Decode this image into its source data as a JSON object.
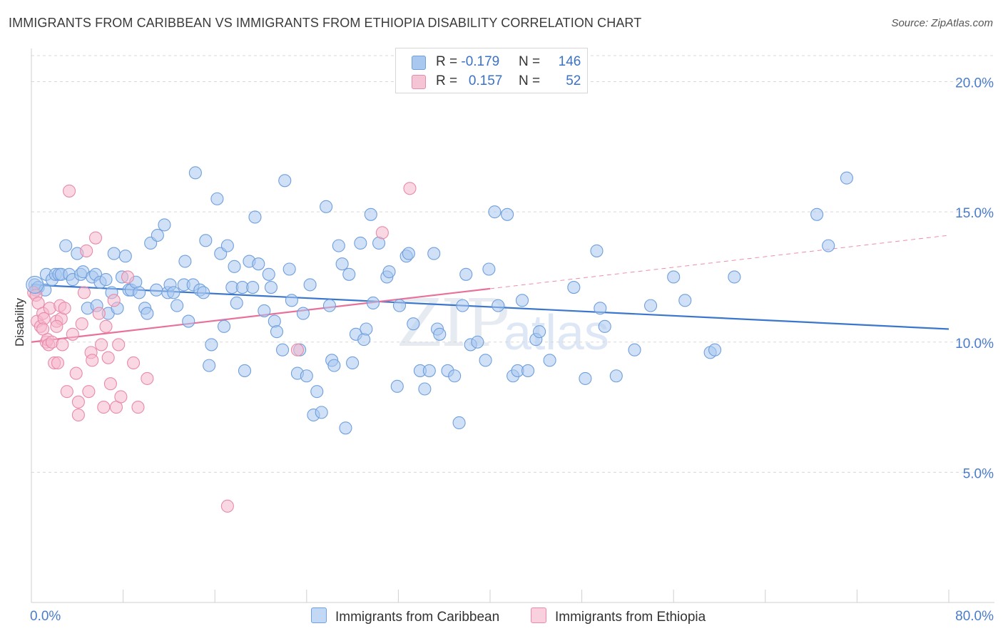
{
  "title": "IMMIGRANTS FROM CARIBBEAN VS IMMIGRANTS FROM ETHIOPIA DISABILITY CORRELATION CHART",
  "source": "Source: ZipAtlas.com",
  "watermark": {
    "part1": "ZIP",
    "part2": "atlas"
  },
  "legend_top": {
    "rows": [
      {
        "r_label": "R = ",
        "r_value": "-0.179",
        "n_label": "N = ",
        "n_value": "146"
      },
      {
        "r_label": "R = ",
        "r_value": "0.157",
        "n_label": "N = ",
        "n_value": "52"
      }
    ]
  },
  "colors": {
    "blue_fill": "#a9c8f0",
    "blue_stroke": "#6f9fdc",
    "blue_line": "#3a77cc",
    "pink_fill": "#f5b8cc",
    "pink_stroke": "#e88aa8",
    "pink_line": "#e8709a",
    "grid": "#d8d8d8",
    "tick_text": "#4a7ccc"
  },
  "chart_data": {
    "type": "scatter",
    "title": "IMMIGRANTS FROM CARIBBEAN VS IMMIGRANTS FROM ETHIOPIA DISABILITY CORRELATION CHART",
    "xlabel": "",
    "ylabel": "Disability",
    "xlim": [
      0,
      80
    ],
    "ylim": [
      0,
      21
    ],
    "x_tick_labels": [
      "0.0%",
      "80.0%"
    ],
    "y_ticks": [
      5,
      10,
      15,
      20
    ],
    "y_tick_labels": [
      "5.0%",
      "10.0%",
      "15.0%",
      "20.0%"
    ],
    "grid": true,
    "legend_position": "bottom",
    "series": [
      {
        "name": "Immigrants from Caribbean",
        "color": "#a9c8f0",
        "R": -0.179,
        "N": 146,
        "trend": {
          "x": [
            0,
            80
          ],
          "y": [
            12.2,
            10.5
          ],
          "dashed_from": null
        },
        "points": [
          [
            0.3,
            12.2
          ],
          [
            0.4,
            12.0
          ],
          [
            0.6,
            12.1
          ],
          [
            1.2,
            12.0
          ],
          [
            1.3,
            12.6
          ],
          [
            1.8,
            12.4
          ],
          [
            2.1,
            12.6
          ],
          [
            2.4,
            12.6
          ],
          [
            2.6,
            12.6
          ],
          [
            3.0,
            13.7
          ],
          [
            3.3,
            12.6
          ],
          [
            3.6,
            12.4
          ],
          [
            4.0,
            13.4
          ],
          [
            4.3,
            12.6
          ],
          [
            4.5,
            12.7
          ],
          [
            4.9,
            11.3
          ],
          [
            5.3,
            12.5
          ],
          [
            5.6,
            12.6
          ],
          [
            5.7,
            11.4
          ],
          [
            6.0,
            12.3
          ],
          [
            6.5,
            12.4
          ],
          [
            6.7,
            11.1
          ],
          [
            7.0,
            11.9
          ],
          [
            7.2,
            13.4
          ],
          [
            7.5,
            11.3
          ],
          [
            7.9,
            12.5
          ],
          [
            8.2,
            13.3
          ],
          [
            8.5,
            12.0
          ],
          [
            8.7,
            12.0
          ],
          [
            9.1,
            12.3
          ],
          [
            9.4,
            11.9
          ],
          [
            9.9,
            11.3
          ],
          [
            10.1,
            11.1
          ],
          [
            10.4,
            13.8
          ],
          [
            10.9,
            12.0
          ],
          [
            11.0,
            14.1
          ],
          [
            11.6,
            14.5
          ],
          [
            11.9,
            11.9
          ],
          [
            12.1,
            12.2
          ],
          [
            12.4,
            11.9
          ],
          [
            12.7,
            11.4
          ],
          [
            13.3,
            12.2
          ],
          [
            13.4,
            13.1
          ],
          [
            13.7,
            10.8
          ],
          [
            14.1,
            12.2
          ],
          [
            14.3,
            16.5
          ],
          [
            14.7,
            12.0
          ],
          [
            15.0,
            11.9
          ],
          [
            15.2,
            13.9
          ],
          [
            15.5,
            9.1
          ],
          [
            15.7,
            9.9
          ],
          [
            16.2,
            15.5
          ],
          [
            16.5,
            13.4
          ],
          [
            16.8,
            10.6
          ],
          [
            17.1,
            13.7
          ],
          [
            17.5,
            12.1
          ],
          [
            17.7,
            12.9
          ],
          [
            17.9,
            11.5
          ],
          [
            18.4,
            12.1
          ],
          [
            18.6,
            8.9
          ],
          [
            19.0,
            13.1
          ],
          [
            19.3,
            12.1
          ],
          [
            19.5,
            14.8
          ],
          [
            19.8,
            13.0
          ],
          [
            20.3,
            11.2
          ],
          [
            20.7,
            12.6
          ],
          [
            20.9,
            12.1
          ],
          [
            21.2,
            10.8
          ],
          [
            21.4,
            10.4
          ],
          [
            21.9,
            9.7
          ],
          [
            22.1,
            16.2
          ],
          [
            22.5,
            12.8
          ],
          [
            22.7,
            11.6
          ],
          [
            23.2,
            8.8
          ],
          [
            23.4,
            9.7
          ],
          [
            23.7,
            11.1
          ],
          [
            24.0,
            8.7
          ],
          [
            24.3,
            12.2
          ],
          [
            24.6,
            7.2
          ],
          [
            24.9,
            8.1
          ],
          [
            25.3,
            7.3
          ],
          [
            25.7,
            15.2
          ],
          [
            26.0,
            11.4
          ],
          [
            26.2,
            9.3
          ],
          [
            26.4,
            9.1
          ],
          [
            26.8,
            13.7
          ],
          [
            27.1,
            13.0
          ],
          [
            27.4,
            6.7
          ],
          [
            27.7,
            12.6
          ],
          [
            28.0,
            9.2
          ],
          [
            28.3,
            10.3
          ],
          [
            28.7,
            13.8
          ],
          [
            29.0,
            10.1
          ],
          [
            29.2,
            10.5
          ],
          [
            29.6,
            14.9
          ],
          [
            29.8,
            11.5
          ],
          [
            30.3,
            13.8
          ],
          [
            31.0,
            12.5
          ],
          [
            31.2,
            12.7
          ],
          [
            31.9,
            8.3
          ],
          [
            32.1,
            11.4
          ],
          [
            32.7,
            13.3
          ],
          [
            32.9,
            13.4
          ],
          [
            33.3,
            10.7
          ],
          [
            33.9,
            8.9
          ],
          [
            34.3,
            8.2
          ],
          [
            34.7,
            8.9
          ],
          [
            35.1,
            13.4
          ],
          [
            35.4,
            10.5
          ],
          [
            35.6,
            10.3
          ],
          [
            36.3,
            8.9
          ],
          [
            36.9,
            8.7
          ],
          [
            37.3,
            6.9
          ],
          [
            37.6,
            11.4
          ],
          [
            37.9,
            12.6
          ],
          [
            38.3,
            9.9
          ],
          [
            38.9,
            10.0
          ],
          [
            39.6,
            9.3
          ],
          [
            39.9,
            12.8
          ],
          [
            40.4,
            15.0
          ],
          [
            40.7,
            11.4
          ],
          [
            41.5,
            14.9
          ],
          [
            42.0,
            8.7
          ],
          [
            42.4,
            8.9
          ],
          [
            42.8,
            11.6
          ],
          [
            43.3,
            8.9
          ],
          [
            44.0,
            10.1
          ],
          [
            44.3,
            10.4
          ],
          [
            45.2,
            9.3
          ],
          [
            47.3,
            12.1
          ],
          [
            48.3,
            8.6
          ],
          [
            49.3,
            13.5
          ],
          [
            49.6,
            11.3
          ],
          [
            50.0,
            10.6
          ],
          [
            51.0,
            8.7
          ],
          [
            52.6,
            9.7
          ],
          [
            54.0,
            11.4
          ],
          [
            56.0,
            12.5
          ],
          [
            57.0,
            11.6
          ],
          [
            59.2,
            9.6
          ],
          [
            59.6,
            9.7
          ],
          [
            61.3,
            12.5
          ],
          [
            68.5,
            14.9
          ],
          [
            69.5,
            13.7
          ],
          [
            71.1,
            16.3
          ]
        ]
      },
      {
        "name": "Immigrants from Ethiopia",
        "color": "#f5b8cc",
        "R": 0.157,
        "N": 52,
        "trend": {
          "x": [
            0,
            80
          ],
          "y": [
            10.0,
            14.1
          ],
          "dashed_from": 40
        },
        "points": [
          [
            0.2,
            11.9
          ],
          [
            0.4,
            11.8
          ],
          [
            0.5,
            10.8
          ],
          [
            0.6,
            11.5
          ],
          [
            0.8,
            10.6
          ],
          [
            1.0,
            11.1
          ],
          [
            1.1,
            10.9
          ],
          [
            1.3,
            10.0
          ],
          [
            1.4,
            10.1
          ],
          [
            1.5,
            9.9
          ],
          [
            1.6,
            11.3
          ],
          [
            1.8,
            10.0
          ],
          [
            2.0,
            9.2
          ],
          [
            2.2,
            10.8
          ],
          [
            2.3,
            9.2
          ],
          [
            2.5,
            11.4
          ],
          [
            2.6,
            10.9
          ],
          [
            2.7,
            9.9
          ],
          [
            2.9,
            11.3
          ],
          [
            3.1,
            8.1
          ],
          [
            3.3,
            15.8
          ],
          [
            3.6,
            10.3
          ],
          [
            3.9,
            8.8
          ],
          [
            4.1,
            7.7
          ],
          [
            4.4,
            10.7
          ],
          [
            4.6,
            11.9
          ],
          [
            4.8,
            13.5
          ],
          [
            5.0,
            8.1
          ],
          [
            5.2,
            9.6
          ],
          [
            5.3,
            9.3
          ],
          [
            5.6,
            14.0
          ],
          [
            5.9,
            11.1
          ],
          [
            6.1,
            9.9
          ],
          [
            6.3,
            7.5
          ],
          [
            6.5,
            10.6
          ],
          [
            6.7,
            9.4
          ],
          [
            6.9,
            8.4
          ],
          [
            7.2,
            11.6
          ],
          [
            7.4,
            7.5
          ],
          [
            7.6,
            9.9
          ],
          [
            7.8,
            7.9
          ],
          [
            8.4,
            12.5
          ],
          [
            8.9,
            9.2
          ],
          [
            9.3,
            7.5
          ],
          [
            10.1,
            8.6
          ],
          [
            17.1,
            3.7
          ],
          [
            23.2,
            9.7
          ],
          [
            30.6,
            14.2
          ],
          [
            33.0,
            15.9
          ],
          [
            1.0,
            10.5
          ],
          [
            2.2,
            10.6
          ],
          [
            4.1,
            7.2
          ]
        ]
      }
    ]
  },
  "legend_bottom": {
    "items": [
      "Immigrants from Caribbean",
      "Immigrants from Ethiopia"
    ]
  }
}
